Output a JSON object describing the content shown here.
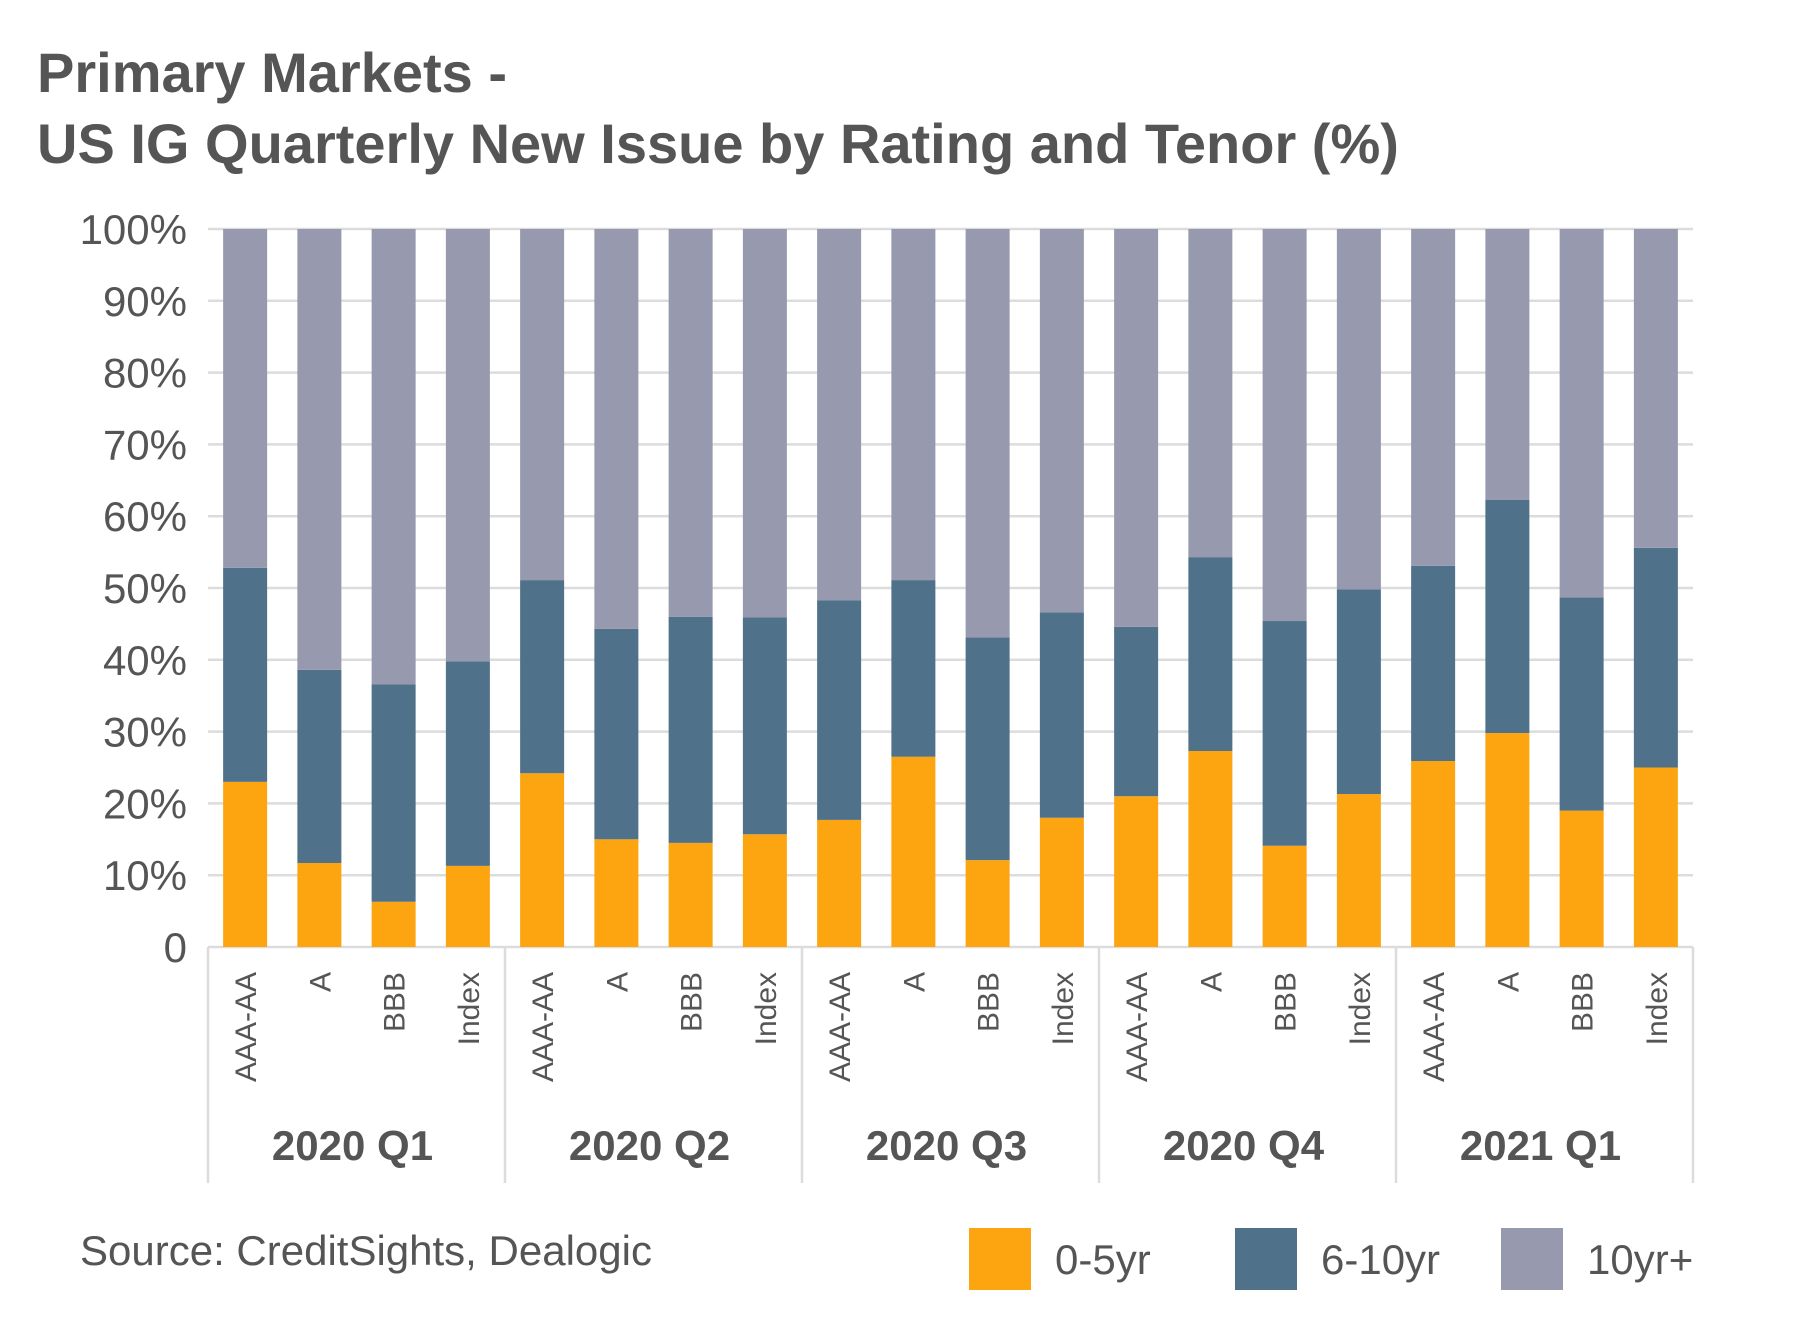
{
  "chart_data": {
    "type": "bar",
    "stacked": true,
    "title_lines": [
      "Primary Markets -",
      "US IG Quarterly New Issue by Rating and Tenor (%)"
    ],
    "groups": [
      {
        "label": "2020 Q1",
        "categories": [
          "AAA-AA",
          "A",
          "BBB",
          "Index"
        ]
      },
      {
        "label": "2020 Q2",
        "categories": [
          "AAA-AA",
          "A",
          "BBB",
          "Index"
        ]
      },
      {
        "label": "2020 Q3",
        "categories": [
          "AAA-AA",
          "A",
          "BBB",
          "Index"
        ]
      },
      {
        "label": "2020 Q4",
        "categories": [
          "AAA-AA",
          "A",
          "BBB",
          "Index"
        ]
      },
      {
        "label": "2021 Q1",
        "categories": [
          "AAA-AA",
          "A",
          "BBB",
          "Index"
        ]
      }
    ],
    "series": [
      {
        "name": "0-5yr",
        "color": "#FCA511",
        "values": [
          23,
          11.7,
          6.3,
          11.3,
          24.2,
          15,
          14.5,
          15.7,
          17.7,
          26.5,
          12.1,
          18,
          21,
          27.3,
          14.1,
          21.3,
          25.9,
          29.8,
          19,
          25
        ]
      },
      {
        "name": "6-10yr",
        "color": "#50718A",
        "values": [
          29.8,
          26.9,
          30.3,
          28.5,
          26.9,
          29.3,
          31.5,
          30.2,
          30.6,
          24.6,
          31,
          28.6,
          23.6,
          27,
          31.3,
          28.5,
          27.2,
          32.5,
          29.7,
          30.6
        ]
      },
      {
        "name": "10yr+",
        "color": "#9799AF",
        "values": [
          47.2,
          61.4,
          63.4,
          60.2,
          48.9,
          55.7,
          54,
          54.1,
          51.7,
          48.9,
          56.9,
          53.4,
          55.4,
          45.7,
          54.6,
          50.2,
          46.9,
          37.7,
          51.3,
          44.4
        ]
      }
    ],
    "y_ticks": [
      "0",
      "10%",
      "20%",
      "30%",
      "40%",
      "50%",
      "60%",
      "70%",
      "80%",
      "90%",
      "100%"
    ],
    "ylim": [
      0,
      100
    ],
    "grid": true,
    "legend_position": "bottom-right",
    "source": "Source: CreditSights, Dealogic"
  }
}
